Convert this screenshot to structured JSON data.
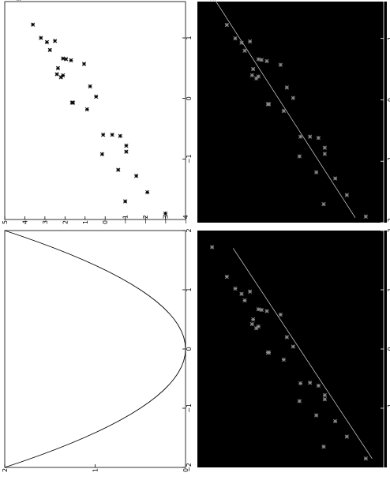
{
  "figure": {
    "orientation": "rotated-90-ccw",
    "panel_backgrounds": {
      "top_left": "#ffffff",
      "top_right": "#000000",
      "bottom_left": "#ffffff",
      "bottom_right": "#000000"
    },
    "colors": {
      "axis_light": "#000000",
      "axis_dark": "#ffffff",
      "marker_light": "#000000",
      "marker_dark": "#8c8c8c",
      "line_dark": "#bfbfbf",
      "curve": "#000000"
    }
  },
  "chart_data": [
    {
      "id": "top-left",
      "type": "scatter",
      "marker": "x",
      "background": "white",
      "xlim": [
        -2,
        1.6
      ],
      "ylim": [
        -4,
        5
      ],
      "xticks": [
        "−1",
        "0",
        "1"
      ],
      "yticks": [
        "5",
        "4",
        "3",
        "2",
        "1",
        "0",
        "−1",
        "−2",
        "−3",
        "−4"
      ],
      "points": [
        {
          "x": 1.65,
          "y": 4.3
        },
        {
          "x": 1.22,
          "y": 3.6
        },
        {
          "x": 1.0,
          "y": 3.2
        },
        {
          "x": 0.93,
          "y": 2.9
        },
        {
          "x": 0.95,
          "y": 2.5
        },
        {
          "x": 0.8,
          "y": 2.75
        },
        {
          "x": 0.66,
          "y": 2.1
        },
        {
          "x": 0.65,
          "y": 1.95
        },
        {
          "x": 0.63,
          "y": 1.7
        },
        {
          "x": 0.57,
          "y": 1.05
        },
        {
          "x": 0.5,
          "y": 2.35
        },
        {
          "x": 0.4,
          "y": 2.4
        },
        {
          "x": 0.38,
          "y": 2.1
        },
        {
          "x": 0.35,
          "y": 2.2
        },
        {
          "x": 0.2,
          "y": 0.75
        },
        {
          "x": 0.03,
          "y": 0.45
        },
        {
          "x": -0.07,
          "y": 1.65
        },
        {
          "x": -0.07,
          "y": 1.6
        },
        {
          "x": -0.18,
          "y": 0.9
        },
        {
          "x": -0.6,
          "y": 0.1
        },
        {
          "x": -0.6,
          "y": -0.35
        },
        {
          "x": -0.62,
          "y": -0.75
        },
        {
          "x": -0.78,
          "y": -1.05
        },
        {
          "x": -0.88,
          "y": -1.05
        },
        {
          "x": -0.92,
          "y": 0.15
        },
        {
          "x": -1.18,
          "y": -0.65
        },
        {
          "x": -1.28,
          "y": -1.55
        },
        {
          "x": -1.55,
          "y": -2.1
        },
        {
          "x": -1.7,
          "y": -1.0
        },
        {
          "x": -1.9,
          "y": -3.0
        }
      ]
    },
    {
      "id": "top-right",
      "type": "scatter",
      "marker": "x",
      "background": "black",
      "xlim": [
        -2,
        1.6
      ],
      "ylim": [
        -4,
        5
      ],
      "xticks": [
        "−2",
        "−1",
        "0",
        "1"
      ],
      "fit_line": [
        {
          "x": -1.92,
          "y": -2.5
        },
        {
          "x": 1.7,
          "y": 4.3
        }
      ],
      "points": [
        {
          "x": 1.65,
          "y": 4.3
        },
        {
          "x": 1.22,
          "y": 3.6
        },
        {
          "x": 1.0,
          "y": 3.2
        },
        {
          "x": 0.93,
          "y": 2.9
        },
        {
          "x": 0.95,
          "y": 2.5
        },
        {
          "x": 0.8,
          "y": 2.75
        },
        {
          "x": 0.66,
          "y": 2.1
        },
        {
          "x": 0.65,
          "y": 1.95
        },
        {
          "x": 0.63,
          "y": 1.7
        },
        {
          "x": 0.57,
          "y": 1.05
        },
        {
          "x": 0.5,
          "y": 2.35
        },
        {
          "x": 0.4,
          "y": 2.4
        },
        {
          "x": 0.38,
          "y": 2.1
        },
        {
          "x": 0.35,
          "y": 2.2
        },
        {
          "x": 0.2,
          "y": 0.75
        },
        {
          "x": 0.03,
          "y": 0.45
        },
        {
          "x": -0.07,
          "y": 1.65
        },
        {
          "x": -0.07,
          "y": 1.6
        },
        {
          "x": -0.18,
          "y": 0.9
        },
        {
          "x": -0.6,
          "y": 0.1
        },
        {
          "x": -0.6,
          "y": -0.35
        },
        {
          "x": -0.62,
          "y": -0.75
        },
        {
          "x": -0.78,
          "y": -1.05
        },
        {
          "x": -0.88,
          "y": -1.05
        },
        {
          "x": -0.92,
          "y": 0.15
        },
        {
          "x": -1.18,
          "y": -0.65
        },
        {
          "x": -1.28,
          "y": -1.55
        },
        {
          "x": -1.55,
          "y": -2.1
        },
        {
          "x": -1.7,
          "y": -1.0
        },
        {
          "x": -1.9,
          "y": -3.0
        }
      ]
    },
    {
      "id": "bottom-left",
      "type": "line",
      "background": "white",
      "xlim": [
        -2,
        2
      ],
      "ylim": [
        0,
        2
      ],
      "xticks": [
        "−2",
        "−1",
        "0",
        "1",
        "2"
      ],
      "yticks": [
        "2",
        "1",
        "0"
      ],
      "curve": {
        "function": "y = x^2 / 2",
        "x_from": -2,
        "x_to": 2,
        "samples": 41
      }
    },
    {
      "id": "bottom-right",
      "type": "scatter",
      "marker": "x",
      "background": "black",
      "xlim": [
        -2,
        2
      ],
      "ylim": [
        -4,
        5
      ],
      "xticks": [
        "−1",
        "0",
        "1",
        "2"
      ],
      "fit_line": [
        {
          "x": -1.85,
          "y": -3.3
        },
        {
          "x": 1.7,
          "y": 3.3
        }
      ],
      "points": [
        {
          "x": 1.72,
          "y": 4.3
        },
        {
          "x": 1.22,
          "y": 3.6
        },
        {
          "x": 1.02,
          "y": 3.2
        },
        {
          "x": 0.93,
          "y": 2.9
        },
        {
          "x": 0.97,
          "y": 2.5
        },
        {
          "x": 0.82,
          "y": 2.75
        },
        {
          "x": 0.67,
          "y": 2.1
        },
        {
          "x": 0.66,
          "y": 1.95
        },
        {
          "x": 0.64,
          "y": 1.7
        },
        {
          "x": 0.58,
          "y": 1.05
        },
        {
          "x": 0.5,
          "y": 2.35
        },
        {
          "x": 0.42,
          "y": 2.4
        },
        {
          "x": 0.38,
          "y": 2.1
        },
        {
          "x": 0.35,
          "y": 2.2
        },
        {
          "x": 0.2,
          "y": 0.75
        },
        {
          "x": 0.04,
          "y": 0.45
        },
        {
          "x": -0.06,
          "y": 1.65
        },
        {
          "x": -0.06,
          "y": 1.6
        },
        {
          "x": -0.18,
          "y": 0.9
        },
        {
          "x": -0.58,
          "y": 0.1
        },
        {
          "x": -0.57,
          "y": -0.35
        },
        {
          "x": -0.62,
          "y": -0.75
        },
        {
          "x": -0.78,
          "y": -1.05
        },
        {
          "x": -0.85,
          "y": -1.05
        },
        {
          "x": -0.88,
          "y": 0.15
        },
        {
          "x": -1.12,
          "y": -0.65
        },
        {
          "x": -1.22,
          "y": -1.55
        },
        {
          "x": -1.48,
          "y": -2.1
        },
        {
          "x": -1.65,
          "y": -1.0
        },
        {
          "x": -1.85,
          "y": -3.0
        }
      ]
    }
  ]
}
